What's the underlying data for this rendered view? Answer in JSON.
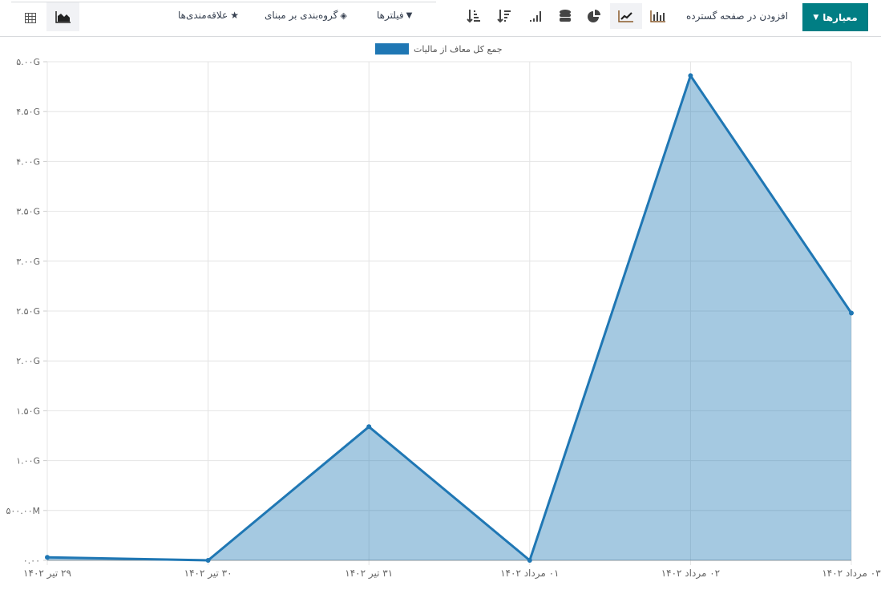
{
  "toolbar": {
    "measures_label": "معیارها",
    "insert_label": "افزودن در صفحه گسترده",
    "filters_label": "فیلترها",
    "groupby_label": "گروه‌بندی بر مبنای",
    "favorites_label": "علاقه‌مندی‌ها",
    "chart_types": [
      "bar-chart-icon",
      "line-chart-icon",
      "pie-chart-icon"
    ],
    "active_chart": "line-chart-icon",
    "active_view": "graph-view-icon"
  },
  "chart_data": {
    "type": "area",
    "categories": [
      "۲۹ تیر ۱۴۰۲",
      "۳۰ تیر ۱۴۰۲",
      "۳۱ تیر ۱۴۰۲",
      "۰۱ مرداد ۱۴۰۲",
      "۰۲ مرداد ۱۴۰۲",
      "۰۳ مرداد ۱۴۰۲"
    ],
    "series": [
      {
        "name": "جمع کل معاف از مالیات",
        "values": [
          30000000,
          0,
          1340000000,
          0,
          4860000000,
          2480000000
        ],
        "color": "#1f77b4"
      }
    ],
    "ylim": [
      0,
      5000000000
    ],
    "yticks": [
      0,
      500000000,
      1000000000,
      1500000000,
      2000000000,
      2500000000,
      3000000000,
      3500000000,
      4000000000,
      4500000000,
      5000000000
    ],
    "ytick_labels": [
      "۰.۰۰",
      "۵۰۰.۰۰M",
      "۱.۰۰G",
      "۱.۵۰G",
      "۲.۰۰G",
      "۲.۵۰G",
      "۳.۰۰G",
      "۳.۵۰G",
      "۴.۰۰G",
      "۴.۵۰G",
      "۵.۰۰G"
    ],
    "grid": true,
    "legend": "top"
  }
}
